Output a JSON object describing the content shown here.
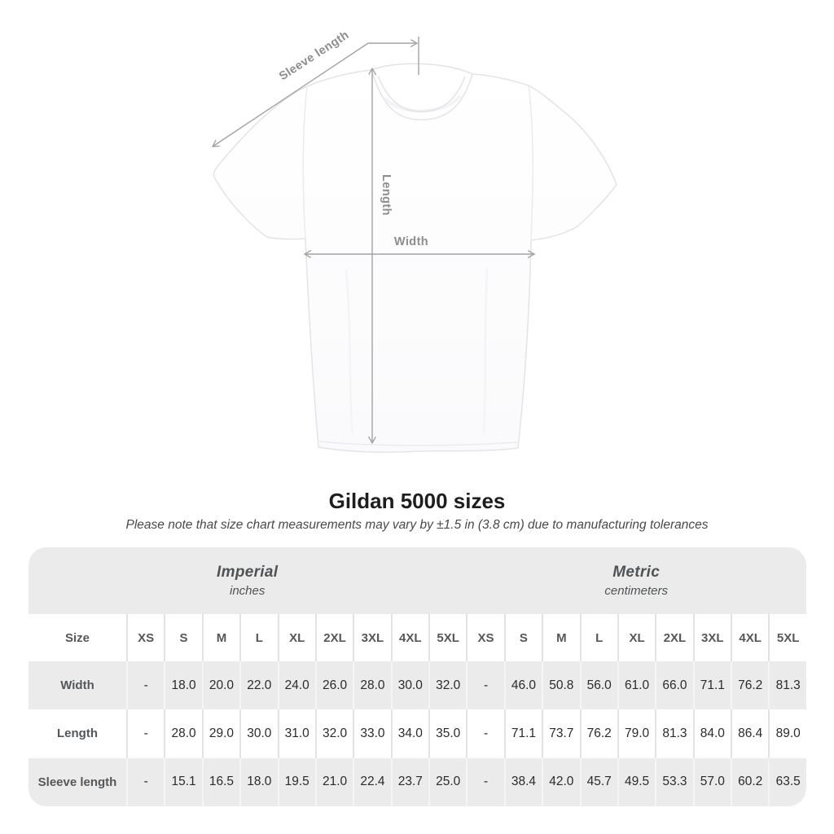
{
  "title": "Gildan 5000 sizes",
  "subtitle": "Please note that size chart measurements may vary by ±1.5 in (3.8 cm) due to manufacturing tolerances",
  "diagram": {
    "labels": {
      "sleeve_length": "Sleeve length",
      "length": "Length",
      "width": "Width"
    },
    "line_color": "#a3a3a3",
    "label_color": "#8d8d8d"
  },
  "chart_data": {
    "type": "table",
    "title": "Gildan 5000 sizes",
    "size_header": "Size",
    "unit_groups": [
      {
        "label": "Imperial",
        "sublabel": "inches"
      },
      {
        "label": "Metric",
        "sublabel": "centimeters"
      }
    ],
    "sizes": [
      "XS",
      "S",
      "M",
      "L",
      "XL",
      "2XL",
      "3XL",
      "4XL",
      "5XL"
    ],
    "rows": [
      {
        "label": "Width",
        "imperial": [
          "-",
          "18.0",
          "20.0",
          "22.0",
          "24.0",
          "26.0",
          "28.0",
          "30.0",
          "32.0"
        ],
        "metric": [
          "-",
          "46.0",
          "50.8",
          "56.0",
          "61.0",
          "66.0",
          "71.1",
          "76.2",
          "81.3"
        ]
      },
      {
        "label": "Length",
        "imperial": [
          "-",
          "28.0",
          "29.0",
          "30.0",
          "31.0",
          "32.0",
          "33.0",
          "34.0",
          "35.0"
        ],
        "metric": [
          "-",
          "71.1",
          "73.7",
          "76.2",
          "79.0",
          "81.3",
          "84.0",
          "86.4",
          "89.0"
        ]
      },
      {
        "label": "Sleeve length",
        "imperial": [
          "-",
          "15.1",
          "16.5",
          "18.0",
          "19.5",
          "21.0",
          "22.4",
          "23.7",
          "25.0"
        ],
        "metric": [
          "-",
          "38.4",
          "42.0",
          "45.7",
          "49.5",
          "53.3",
          "57.0",
          "60.2",
          "63.5"
        ]
      }
    ]
  },
  "colors": {
    "page_background": "#ffffff",
    "table_background": "#ebebeb",
    "row_white": "#ffffff",
    "header_text": "#54585b",
    "value_text": "#2b2b2b",
    "title_text": "#1e1e1e",
    "subtitle_text": "#494949",
    "measurement_line": "#a3a3a3"
  }
}
